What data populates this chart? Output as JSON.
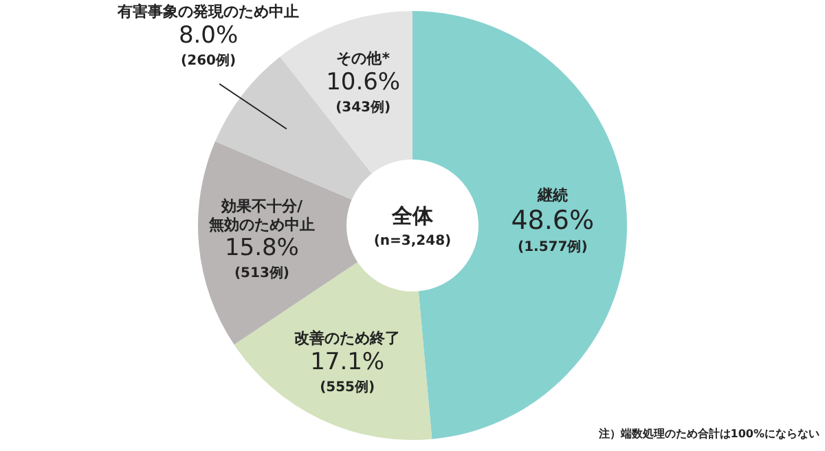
{
  "chart_data": {
    "type": "donut",
    "title": "全体",
    "subtitle": "(n=3,248)",
    "categories": [
      "継続",
      "改善のため終了",
      "効果不十分/\n無効のため中止",
      "有害事象の発現のため中止",
      "その他*"
    ],
    "values": [
      48.6,
      17.1,
      15.8,
      8.0,
      10.6
    ],
    "colors": [
      "#86d2cf",
      "#d4e2bd",
      "#b9b5b5",
      "#d2d1d1",
      "#e4e4e4"
    ],
    "value_labels": [
      "48.6%",
      "17.1%",
      "15.8%",
      "8.0%",
      "10.6%"
    ],
    "annotations": [
      {
        "text": "(1.577例)",
        "x": "継続"
      },
      {
        "text": "(555例)",
        "x": "改善のため終了"
      },
      {
        "text": "(513例)",
        "x": "効果不十分/\n無効のため中止"
      },
      {
        "text": "(260例)",
        "x": "有害事象の発現のため中止"
      },
      {
        "text": "(343例)",
        "x": "その他*"
      },
      "注）端数処理のため合計は100%にならない"
    ]
  }
}
